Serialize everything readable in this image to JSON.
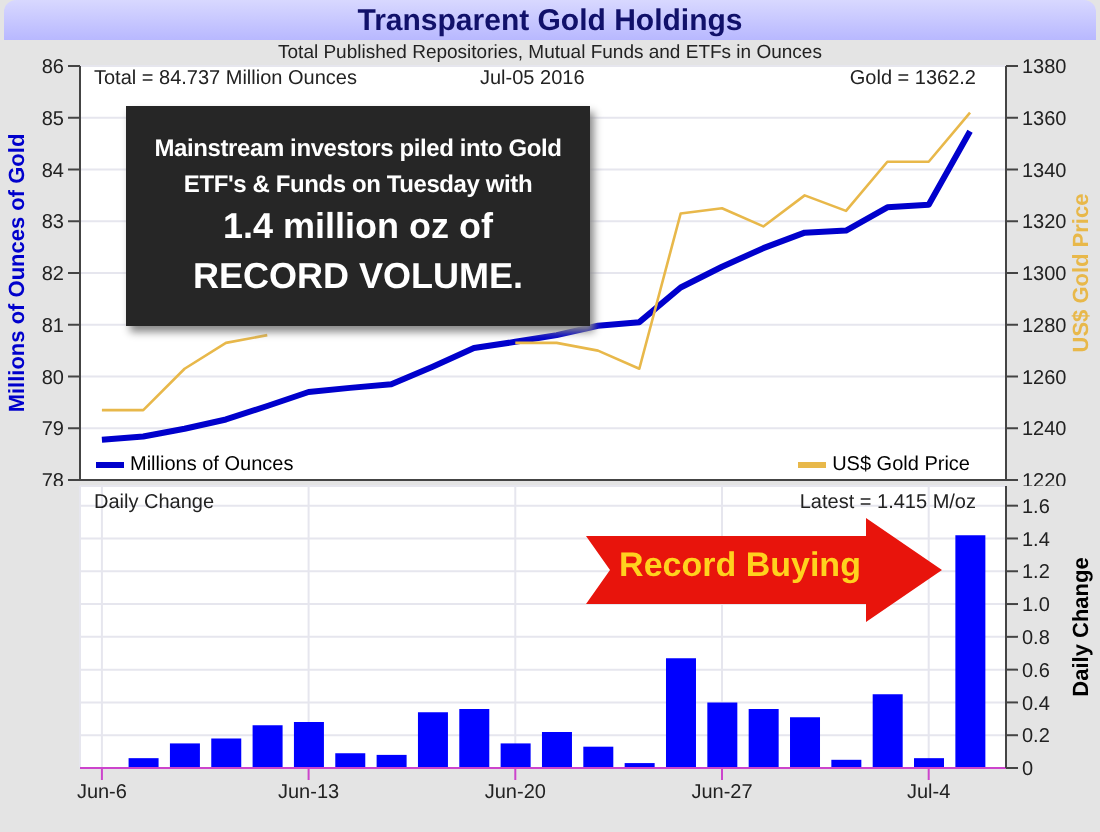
{
  "chart_data": [
    {
      "type": "line",
      "title": "Transparent Gold Holdings",
      "subtitle": "Total Published Repositories, Mutual Funds and ETFs in Ounces",
      "ylabel": "Millions of Ounces of Gold",
      "y2label": "US$ Gold Price",
      "categories": [
        null,
        null,
        null,
        null,
        null,
        null,
        null,
        null,
        null,
        null,
        null,
        null,
        null,
        null,
        null,
        null,
        null,
        null,
        null,
        null,
        null,
        null
      ],
      "series": [
        {
          "name": "Millions of Ounces",
          "color": "#0000cc",
          "values": [
            78.78,
            78.84,
            78.99,
            79.17,
            79.43,
            79.7,
            79.78,
            79.85,
            80.19,
            80.55,
            80.67,
            80.8,
            80.98,
            81.05,
            81.72,
            82.12,
            82.48,
            82.78,
            82.82,
            83.27,
            83.32,
            84.74
          ]
        },
        {
          "name": "US$ Gold Price",
          "color": "#e8b84a",
          "axis": "y2",
          "values": [
            1247,
            1247,
            1263,
            1273,
            1276,
            null,
            null,
            null,
            null,
            null,
            1273,
            1273,
            1270,
            1263,
            1323,
            1325,
            1318,
            1330,
            1324,
            1343,
            1343,
            1362
          ]
        }
      ],
      "ylim": [
        78,
        86
      ],
      "yticks": [
        78,
        79,
        80,
        81,
        82,
        83,
        84,
        85,
        86
      ],
      "y2lim": [
        1220,
        1380
      ],
      "y2ticks": [
        1220,
        1240,
        1260,
        1280,
        1300,
        1320,
        1340,
        1360,
        1380
      ],
      "grid": "y",
      "legend": "bottom",
      "tick_labels": "y",
      "annotations": [
        "Total = 84.737 Million Ounces",
        "Jul-05  2016",
        "Gold = 1362.2",
        "Mainstream investors piled into Gold ETF's & Funds on Tuesday with",
        "1.4 million oz of RECORD VOLUME."
      ]
    },
    {
      "type": "bar",
      "y2label": "Daily Change",
      "categories": [
        "Jun-6",
        null,
        null,
        null,
        null,
        "Jun-13",
        null,
        null,
        null,
        null,
        "Jun-20",
        null,
        null,
        null,
        null,
        "Jun-27",
        null,
        null,
        null,
        null,
        "Jul-4",
        null
      ],
      "series": [
        {
          "color": "#0000ff",
          "axis": "y2",
          "values": [
            0,
            0.06,
            0.15,
            0.18,
            0.26,
            0.28,
            0.09,
            0.08,
            0.34,
            0.36,
            0.15,
            0.22,
            0.13,
            0.03,
            0.67,
            0.4,
            0.36,
            0.31,
            0.05,
            0.45,
            0.06,
            1.42
          ]
        }
      ],
      "y2lim": [
        0,
        1.72
      ],
      "y2ticks": [
        0,
        0.2,
        0.4,
        0.6,
        0.8,
        {
          "value": 1,
          "label": "1.0"
        },
        1.2,
        1.4,
        1.6
      ],
      "grid": true,
      "annotations": [
        "Daily Change",
        "Latest = 1.415 M/oz",
        "Record Buying"
      ]
    }
  ]
}
